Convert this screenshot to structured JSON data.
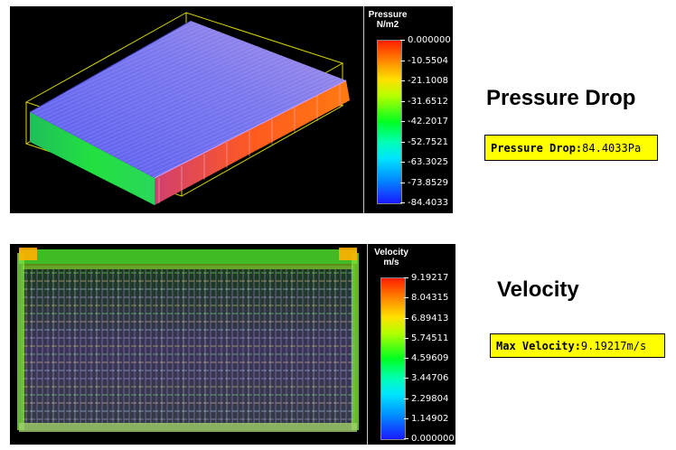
{
  "pressure": {
    "legend_title": "Pressure",
    "legend_unit": "N/m2",
    "ticks": [
      "0.000000",
      "-10.5504",
      "-21.1008",
      "-31.6512",
      "-42.2017",
      "-52.7521",
      "-63.3025",
      "-73.8529",
      "-84.4033"
    ],
    "heading": "Pressure Drop",
    "result_label": "Pressure Drop:",
    "result_value": "84.4033Pa"
  },
  "velocity": {
    "legend_title": "Velocity",
    "legend_unit": "m/s",
    "ticks": [
      "9.19217",
      "8.04315",
      "6.89413",
      "5.74511",
      "4.59609",
      "3.44706",
      "2.29804",
      "1.14902",
      "0.000000"
    ],
    "heading": "Velocity",
    "result_label": "Max Velocity:",
    "result_value": "9.19217m/s"
  },
  "colors": {
    "highlight_box": "#ffff00",
    "panel_background": "#000000",
    "bounding_box": "#d8d800"
  }
}
